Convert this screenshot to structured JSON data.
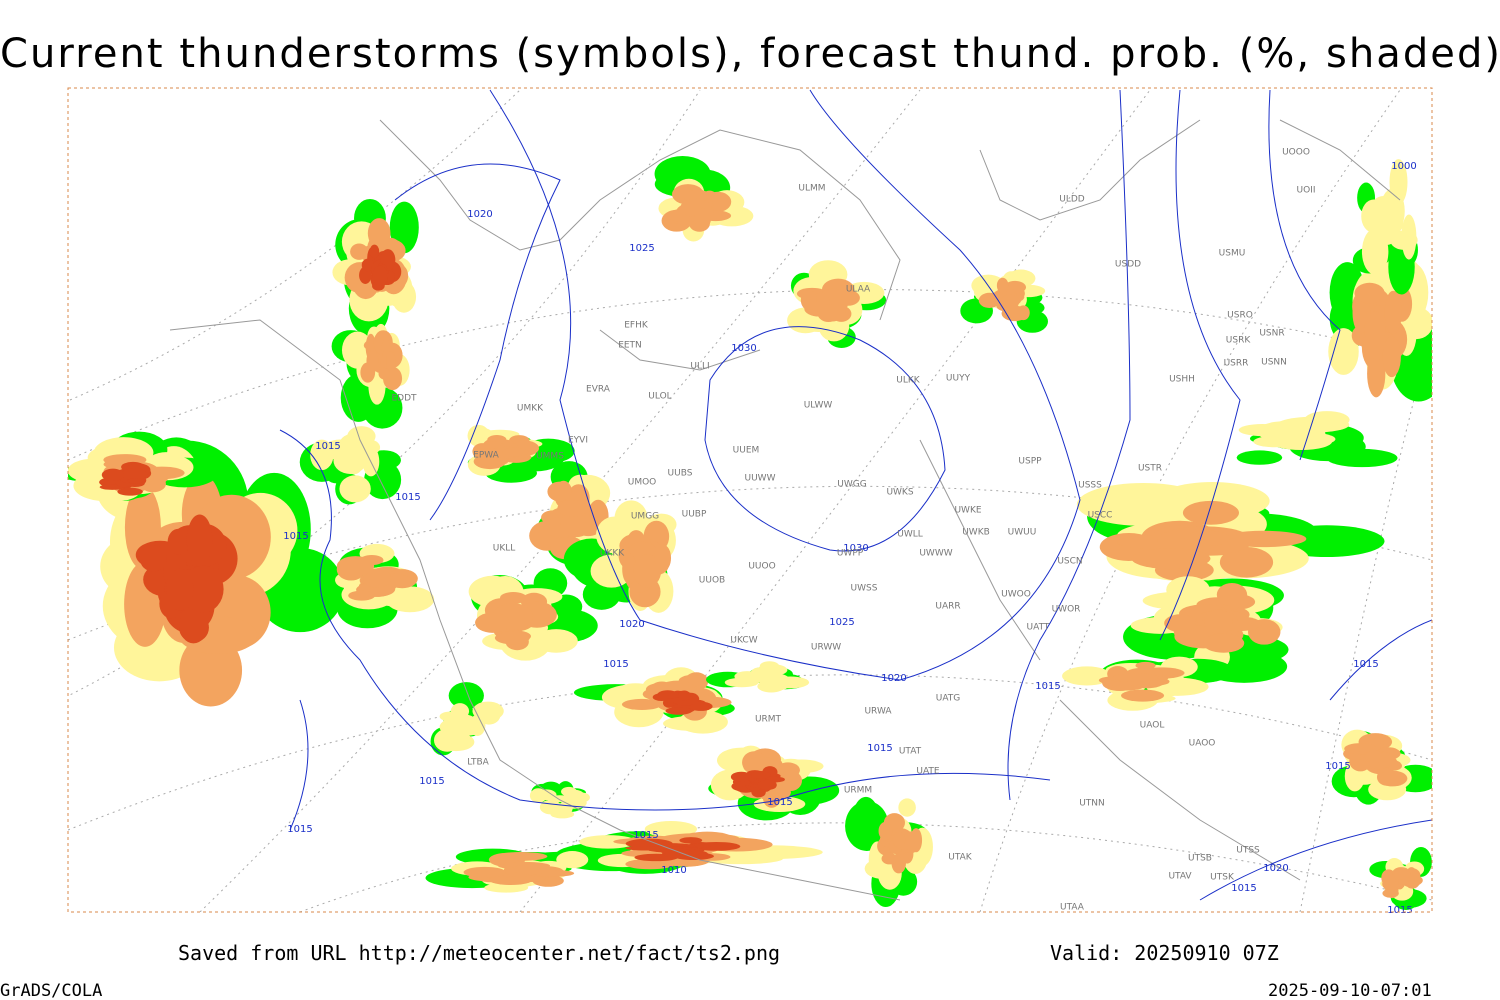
{
  "title": "Current thunderstorms (symbols), forecast thund. prob. (%, shaded)",
  "footer": {
    "source": "Saved from URL http://meteocenter.net/fact/ts2.png",
    "valid": "Valid: 20250910 07Z",
    "software": "GrADS/COLA",
    "timestamp": "2025-09-10-07:01"
  },
  "isobar_labels": [
    "1020",
    "1025",
    "1030",
    "1015",
    "1015",
    "1015",
    "1030",
    "1025",
    "1020",
    "1015",
    "1020",
    "1015",
    "1015",
    "1015",
    "1015",
    "1015",
    "1015",
    "1010",
    "1000",
    "1015",
    "1015",
    "1020",
    "1015",
    "1015"
  ],
  "stations": [
    "ULMM",
    "ULDD",
    "USDD",
    "USMU",
    "UOOO",
    "UOII",
    "ULAA",
    "EFHK",
    "EETN",
    "ULLI",
    "ULOL",
    "EVRA",
    "ULKK",
    "UUYY",
    "ULWW",
    "USRO",
    "USRK",
    "USNR",
    "USRR",
    "USNN",
    "USHH",
    "UMKK",
    "EYVI",
    "UUEM",
    "UUBS",
    "UMMS",
    "UUWW",
    "UMOO",
    "UWGG",
    "UWKS",
    "USPP",
    "USTR",
    "USSS",
    "UWKE",
    "UUBP",
    "USCC",
    "UWKB",
    "UWUU",
    "UWLL",
    "UMGG",
    "UUOO",
    "UWPP",
    "UWWW",
    "USCN",
    "UKKK",
    "UUOB",
    "UWSS",
    "UWOO",
    "UWOR",
    "UARR",
    "UATT",
    "URWW",
    "UKCW",
    "UATG",
    "URWA",
    "URMT",
    "UAOL",
    "UAOO",
    "UTAT",
    "UATE",
    "URMM",
    "UTNN",
    "UTAK",
    "UTSS",
    "UTSB",
    "UTAV",
    "UTSK",
    "UTAA",
    "LTBA",
    "EDDT",
    "EPWA",
    "UKLL"
  ]
}
